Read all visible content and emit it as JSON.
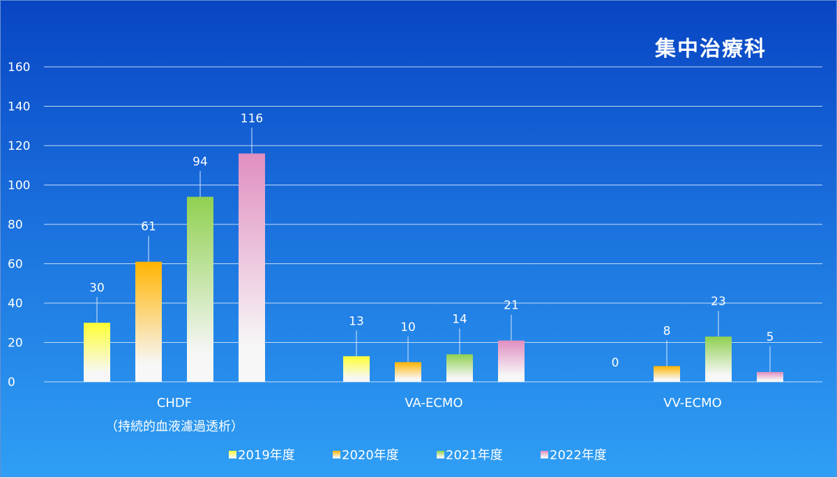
{
  "chart_data": {
    "type": "bar",
    "title": "集中治療科",
    "categories": [
      "CHDF\n（持続的血液濾過透析）",
      "VA-ECMO",
      "VV-ECMO"
    ],
    "series": [
      {
        "name": "2019年度",
        "values": [
          30,
          13,
          0
        ],
        "color_top": "#ffff33",
        "color_bottom": "#f7f7f7"
      },
      {
        "name": "2020年度",
        "values": [
          61,
          10,
          8
        ],
        "color_top": "#ffb400",
        "color_bottom": "#f7f7f7"
      },
      {
        "name": "2021年度",
        "values": [
          94,
          14,
          23
        ],
        "color_top": "#8fd050",
        "color_bottom": "#f7f7f7"
      },
      {
        "name": "2022年度",
        "values": [
          116,
          21,
          5
        ],
        "color_top": "#e08ec0",
        "color_bottom": "#f7f7f7"
      }
    ],
    "ylim": [
      0,
      160
    ],
    "yticks": [
      0,
      20,
      40,
      60,
      80,
      100,
      120,
      140,
      160
    ],
    "grid": true,
    "legend_position": "bottom",
    "xlabel": "",
    "ylabel": ""
  }
}
